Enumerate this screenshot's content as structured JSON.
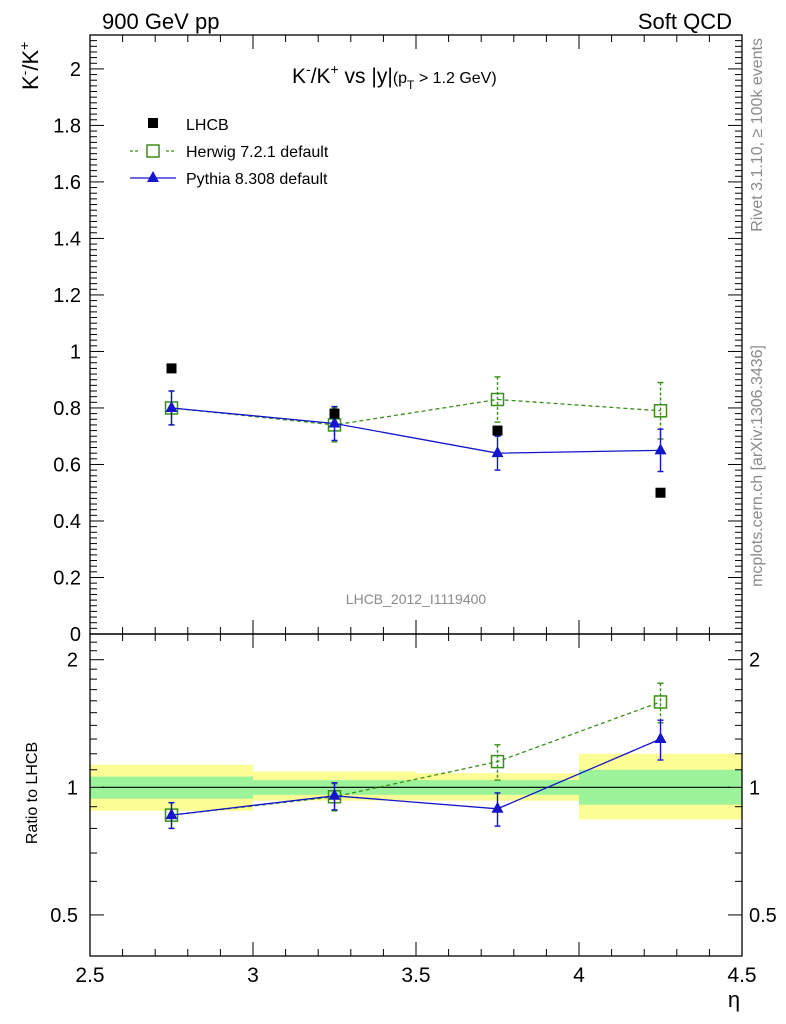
{
  "header": {
    "left": "900 GeV pp",
    "right": "Soft QCD"
  },
  "side_labels": {
    "rivet": "Rivet 3.1.10, ≥ 100k events",
    "mcplots": "mcplots.cern.ch [arXiv:1306.3436]"
  },
  "watermark": "LHCB_2012_I1119400",
  "chart_data": [
    {
      "type": "scatter",
      "panel": "main",
      "title": "K⁻/K⁺ vs |y|(pT > 1.2 GeV)",
      "title_parts": {
        "main": "K",
        "sup1": "-",
        "mid": "/K",
        "sup2": "+",
        "tail": " vs |y|",
        "sub_open": "(p",
        "sub_T": "T",
        "sub_close": " > 1.2 GeV)"
      },
      "ylabel_parts": {
        "a": "K",
        "sup1": "-",
        "b": "/K",
        "sup2": "+"
      },
      "xlim": [
        2.5,
        4.5
      ],
      "ylim": [
        0,
        2.12
      ],
      "yticks": [
        0,
        0.2,
        0.4,
        0.6,
        0.8,
        1,
        1.2,
        1.4,
        1.6,
        1.8,
        2
      ],
      "ytick_labels": [
        "0",
        "0.2",
        "0.4",
        "0.6",
        "0.8",
        "1",
        "1.2",
        "1.4",
        "1.6",
        "1.8",
        "2"
      ],
      "legend_position": "top-left",
      "series": [
        {
          "name": "LHCB",
          "style": "data",
          "color": "#000000",
          "x": [
            2.75,
            3.25,
            3.75,
            4.25
          ],
          "y": [
            0.94,
            0.78,
            0.72,
            0.5
          ]
        },
        {
          "name": "Herwig 7.2.1 default",
          "style": "herwig",
          "color": "#3a8f1a",
          "x": [
            2.75,
            3.25,
            3.75,
            4.25
          ],
          "y": [
            0.8,
            0.74,
            0.83,
            0.79
          ],
          "err": [
            0.06,
            0.06,
            0.08,
            0.1
          ]
        },
        {
          "name": "Pythia 8.308 default",
          "style": "pythia",
          "color": "#1515cc",
          "x": [
            2.75,
            3.25,
            3.75,
            4.25
          ],
          "y": [
            0.8,
            0.745,
            0.64,
            0.65
          ],
          "err": [
            0.06,
            0.06,
            0.06,
            0.075
          ]
        }
      ]
    },
    {
      "type": "scatter",
      "panel": "ratio",
      "ylabel": "Ratio to LHCB",
      "xlabel": "η",
      "xlim": [
        2.5,
        4.5
      ],
      "ylim": [
        0.4,
        2.3
      ],
      "yscale": "log",
      "yticks": [
        0.5,
        1,
        2
      ],
      "ytick_labels": [
        "0.5",
        "1",
        "2"
      ],
      "xticks": [
        2.5,
        3,
        3.5,
        4,
        4.5
      ],
      "xtick_labels": [
        "2.5",
        "3",
        "3.5",
        "4",
        "4.5"
      ],
      "bands": [
        {
          "x0": 2.5,
          "x1": 3.0,
          "inner": [
            0.94,
            1.06
          ],
          "outer": [
            0.88,
            1.13
          ]
        },
        {
          "x0": 3.0,
          "x1": 3.5,
          "inner": [
            0.96,
            1.04
          ],
          "outer": [
            0.93,
            1.09
          ]
        },
        {
          "x0": 3.5,
          "x1": 4.0,
          "inner": [
            0.96,
            1.04
          ],
          "outer": [
            0.93,
            1.08
          ]
        },
        {
          "x0": 4.0,
          "x1": 4.5,
          "inner": [
            0.91,
            1.1
          ],
          "outer": [
            0.84,
            1.2
          ]
        }
      ],
      "series": [
        {
          "name": "Herwig 7.2.1 default",
          "style": "herwig",
          "color": "#3a8f1a",
          "x": [
            2.75,
            3.25,
            3.75,
            4.25
          ],
          "y": [
            0.86,
            0.95,
            1.15,
            1.59
          ],
          "err": [
            0.06,
            0.07,
            0.11,
            0.17
          ]
        },
        {
          "name": "Pythia 8.308 default",
          "style": "pythia",
          "color": "#1515cc",
          "x": [
            2.75,
            3.25,
            3.75,
            4.25
          ],
          "y": [
            0.86,
            0.955,
            0.89,
            1.3
          ],
          "err": [
            0.06,
            0.07,
            0.08,
            0.14
          ]
        }
      ]
    }
  ]
}
